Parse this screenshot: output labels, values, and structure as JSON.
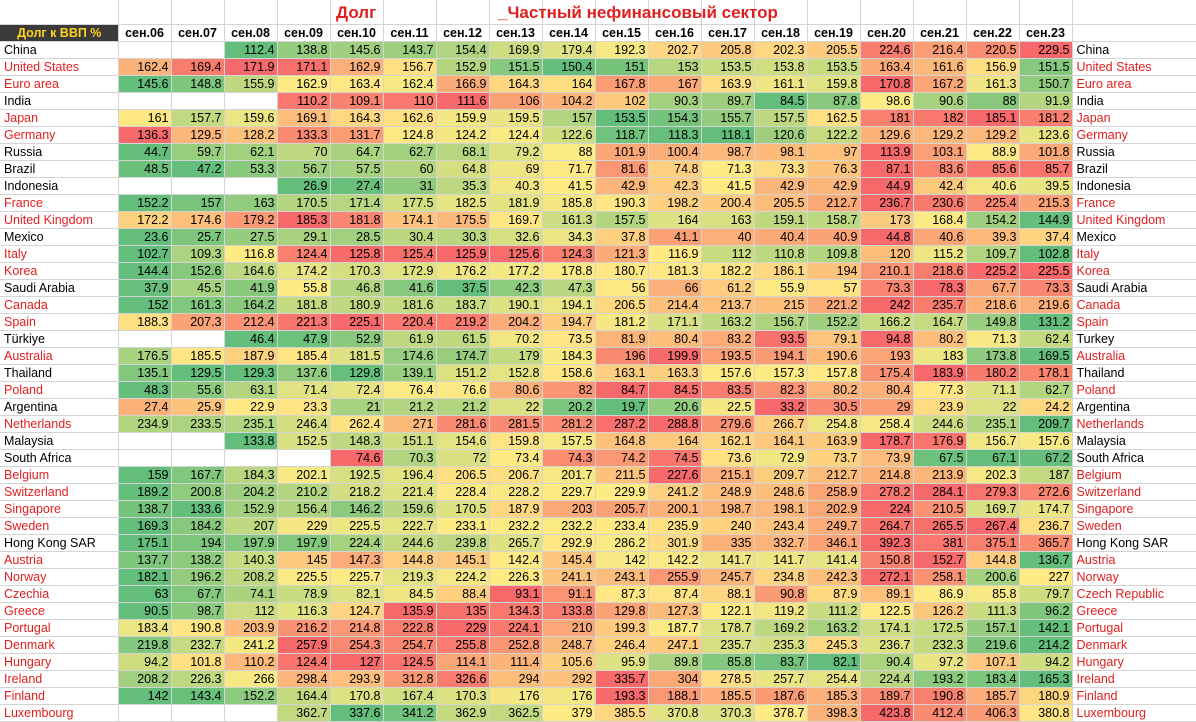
{
  "title_left": "Долг",
  "title_right": "_Частный нефинансовый сектор",
  "corner_label": "Долг к ВВП %",
  "columns": [
    "сен.06",
    "сен.07",
    "сен.08",
    "сен.09",
    "сен.10",
    "сен.11",
    "сен.12",
    "сен.13",
    "сен.14",
    "сен.15",
    "сен.16",
    "сен.17",
    "сен.18",
    "сен.19",
    "сен.20",
    "сен.21",
    "сен.22",
    "сен.23"
  ],
  "rows": [
    {
      "name": "China",
      "right_name": "China",
      "red": false,
      "values": [
        null,
        null,
        112.4,
        138.8,
        145.6,
        143.7,
        154.4,
        169.9,
        179.4,
        192.3,
        202.7,
        205.8,
        202.3,
        205.5,
        224.6,
        216.4,
        220.5,
        229.5
      ]
    },
    {
      "name": "United States",
      "right_name": "United States",
      "red": true,
      "values": [
        162.4,
        169.4,
        171.9,
        171.1,
        162.9,
        156.7,
        152.9,
        151.5,
        150.4,
        151,
        153,
        153.5,
        153.8,
        153.5,
        163.4,
        161.6,
        156.9,
        151.5
      ]
    },
    {
      "name": "Euro area",
      "right_name": "Euro area",
      "red": true,
      "values": [
        145.6,
        148.8,
        155.9,
        162.9,
        163.4,
        162.4,
        166.9,
        164.3,
        164,
        167.8,
        167,
        163.9,
        161.1,
        159.8,
        170.8,
        167.2,
        161.3,
        150.7
      ]
    },
    {
      "name": "India",
      "right_name": "India",
      "red": false,
      "values": [
        null,
        null,
        null,
        110.2,
        109.1,
        110,
        111.6,
        106,
        104.2,
        102,
        90.3,
        89.7,
        84.5,
        87.8,
        98.6,
        90.6,
        88,
        91.9
      ]
    },
    {
      "name": "Japan",
      "right_name": "Japan",
      "red": true,
      "values": [
        161,
        157.7,
        159.6,
        169.1,
        164.3,
        162.6,
        159.9,
        159.5,
        157,
        153.5,
        154.3,
        155.7,
        157.5,
        162.5,
        181,
        182,
        185.1,
        181.2
      ]
    },
    {
      "name": "Germany",
      "right_name": "Germany",
      "red": true,
      "values": [
        136.3,
        129.5,
        128.2,
        133.3,
        131.7,
        124.8,
        124.2,
        124.4,
        122.6,
        118.7,
        118.3,
        118.1,
        120.6,
        122.2,
        129.6,
        129.2,
        129.2,
        123.6
      ]
    },
    {
      "name": "Russia",
      "right_name": "Russia",
      "red": false,
      "values": [
        44.7,
        59.7,
        62.1,
        70,
        64.7,
        62.7,
        68.1,
        79.2,
        88,
        101.9,
        100.4,
        98.7,
        98.1,
        97,
        113.9,
        103.1,
        88.9,
        101.8
      ]
    },
    {
      "name": "Brazil",
      "right_name": "Brazil",
      "red": false,
      "values": [
        48.5,
        47.2,
        53.3,
        56.7,
        57.5,
        60,
        64.8,
        69,
        71.7,
        81.6,
        74.8,
        71.3,
        73.3,
        76.3,
        87.1,
        83.6,
        85.6,
        85.7
      ]
    },
    {
      "name": "Indonesia",
      "right_name": "Indonesia",
      "red": false,
      "values": [
        null,
        null,
        null,
        26.9,
        27.4,
        31,
        35.3,
        40.3,
        41.5,
        42.9,
        42.3,
        41.5,
        42.9,
        42.9,
        44.9,
        42.4,
        40.6,
        39.5
      ]
    },
    {
      "name": "France",
      "right_name": "France",
      "red": true,
      "values": [
        152.2,
        157,
        163,
        170.5,
        171.4,
        177.5,
        182.5,
        181.9,
        185.8,
        190.3,
        198.2,
        200.4,
        205.5,
        212.7,
        236.7,
        230.6,
        225.4,
        215.3
      ]
    },
    {
      "name": "United Kingdom",
      "right_name": "United Kingdom",
      "red": true,
      "values": [
        172.2,
        174.6,
        179.2,
        185.3,
        181.8,
        174.1,
        175.5,
        169.7,
        161.3,
        157.5,
        164,
        163,
        159.1,
        158.7,
        173,
        168.4,
        154.2,
        144.9
      ]
    },
    {
      "name": "Mexico",
      "right_name": "Mexico",
      "red": false,
      "values": [
        23.6,
        25.7,
        27.5,
        29.1,
        28.5,
        30.4,
        30.3,
        32.6,
        34.3,
        37.8,
        41.1,
        40,
        40.4,
        40.9,
        44.8,
        40.6,
        39.3,
        37.4
      ]
    },
    {
      "name": "Italy",
      "right_name": "Italy",
      "red": true,
      "values": [
        102.7,
        109.3,
        116.8,
        124.4,
        125.8,
        125.4,
        125.9,
        125.6,
        124.3,
        121.3,
        116.9,
        112,
        110.8,
        109.8,
        120,
        115.2,
        109.7,
        102.8
      ]
    },
    {
      "name": "Korea",
      "right_name": "Korea",
      "red": true,
      "values": [
        144.4,
        152.6,
        164.6,
        174.2,
        170.3,
        172.9,
        176.2,
        177.2,
        178.8,
        180.7,
        181.3,
        182.2,
        186.1,
        194,
        210.1,
        218.6,
        225.2,
        225.5
      ]
    },
    {
      "name": "Saudi Arabia",
      "right_name": "Saudi Arabia",
      "red": false,
      "values": [
        37.9,
        45.5,
        41.9,
        55.8,
        46.8,
        41.6,
        37.5,
        42.3,
        47.3,
        56,
        66,
        61.2,
        55.9,
        57,
        73.3,
        78.3,
        67.7,
        73.3
      ]
    },
    {
      "name": "Canada",
      "right_name": "Canada",
      "red": true,
      "values": [
        152,
        161.3,
        164.2,
        181.8,
        180.9,
        181.6,
        183.7,
        190.1,
        194.1,
        206.5,
        214.4,
        213.7,
        215,
        221.2,
        242,
        235.7,
        218.6,
        219.6
      ]
    },
    {
      "name": "Spain",
      "right_name": "Spain",
      "red": true,
      "values": [
        188.3,
        207.3,
        212.4,
        221.3,
        225.1,
        220.4,
        219.2,
        204.2,
        194.7,
        181.2,
        171.1,
        163.2,
        156.7,
        152.2,
        166.2,
        164.7,
        149.8,
        131.2
      ]
    },
    {
      "name": "Türkiye",
      "right_name": "Turkey",
      "red": false,
      "values": [
        null,
        null,
        46.4,
        47.9,
        52.9,
        61.9,
        61.5,
        70.2,
        73.5,
        81.9,
        80.4,
        83.2,
        93.5,
        79.1,
        94.8,
        80.2,
        71.3,
        62.4
      ]
    },
    {
      "name": "Australia",
      "right_name": "Australia",
      "red": true,
      "values": [
        176.5,
        185.5,
        187.9,
        185.4,
        181.5,
        174.6,
        174.7,
        179,
        184.3,
        196,
        199.9,
        193.5,
        194.1,
        190.6,
        193,
        183,
        173.8,
        169.5
      ]
    },
    {
      "name": "Thailand",
      "right_name": "Thailand",
      "red": false,
      "values": [
        135.1,
        129.5,
        129.3,
        137.6,
        129.8,
        139.1,
        151.2,
        152.8,
        158.6,
        163.1,
        163.3,
        157.6,
        157.3,
        157.8,
        175.4,
        183.9,
        180.2,
        178.1
      ]
    },
    {
      "name": "Poland",
      "right_name": "Poland",
      "red": true,
      "values": [
        48.3,
        55.6,
        63.1,
        71.4,
        72.4,
        76.4,
        76.6,
        80.6,
        82,
        84.7,
        84.5,
        83.5,
        82.3,
        80.2,
        80.4,
        77.3,
        71.1,
        62.7
      ]
    },
    {
      "name": "Argentina",
      "right_name": "Argentina",
      "red": false,
      "values": [
        27.4,
        25.9,
        22.9,
        23.3,
        21,
        21.2,
        21.2,
        22,
        20.2,
        19.7,
        20.6,
        22.5,
        33.2,
        30.5,
        29,
        23.9,
        22,
        24.2
      ]
    },
    {
      "name": "Netherlands",
      "right_name": "Netherlands",
      "red": true,
      "values": [
        234.9,
        233.5,
        235.1,
        246.4,
        262.4,
        271,
        281.6,
        281.5,
        281.2,
        287.2,
        288.8,
        279.6,
        266.7,
        254.8,
        258.4,
        244.6,
        235.1,
        209.7
      ]
    },
    {
      "name": "Malaysia",
      "right_name": "Malaysia",
      "red": false,
      "values": [
        null,
        null,
        133.8,
        152.5,
        148.3,
        151.1,
        154.6,
        159.8,
        157.5,
        164.8,
        164,
        162.1,
        164.1,
        163.9,
        178.7,
        176.9,
        156.7,
        157.6
      ]
    },
    {
      "name": "South Africa",
      "right_name": "South Africa",
      "red": false,
      "values": [
        null,
        null,
        null,
        null,
        74.6,
        70.3,
        72,
        73.4,
        74.3,
        74.2,
        74.5,
        73.6,
        72.9,
        73.7,
        73.9,
        67.5,
        67.1,
        67.2
      ]
    },
    {
      "name": "Belgium",
      "right_name": "Belgium",
      "red": true,
      "values": [
        159,
        167.7,
        184.3,
        202.1,
        192.5,
        196.4,
        206.5,
        206.7,
        201.7,
        211.5,
        227.6,
        215.1,
        209.7,
        212.7,
        214.8,
        213.9,
        202.3,
        187
      ]
    },
    {
      "name": "Switzerland",
      "right_name": "Switzerland",
      "red": true,
      "values": [
        189.2,
        200.8,
        204.2,
        210.2,
        218.2,
        221.4,
        228.4,
        228.2,
        229.7,
        229.9,
        241.2,
        248.9,
        248.6,
        258.9,
        278.2,
        284.1,
        279.3,
        272.6
      ]
    },
    {
      "name": "Singapore",
      "right_name": "Singapore",
      "red": true,
      "values": [
        138.7,
        133.6,
        152.9,
        156.4,
        146.2,
        159.6,
        170.5,
        187.9,
        203,
        205.7,
        200.1,
        198.7,
        198.1,
        202.9,
        224,
        210.5,
        169.7,
        174.7
      ]
    },
    {
      "name": "Sweden",
      "right_name": "Sweden",
      "red": true,
      "values": [
        169.3,
        184.2,
        207,
        229,
        225.5,
        222.7,
        233.1,
        232.2,
        232.2,
        233.4,
        235.9,
        240,
        243.4,
        249.7,
        264.7,
        265.5,
        267.4,
        236.7
      ]
    },
    {
      "name": "Hong Kong SAR",
      "right_name": "Hong Kong SAR",
      "red": false,
      "values": [
        175.1,
        194,
        197.9,
        197.9,
        224.4,
        244.6,
        239.8,
        265.7,
        292.9,
        286.2,
        301.9,
        335,
        332.7,
        346.1,
        392.3,
        381,
        375.1,
        365.7
      ]
    },
    {
      "name": "Austria",
      "right_name": "Austria",
      "red": true,
      "values": [
        137.7,
        138.2,
        140.3,
        145,
        147.3,
        144.8,
        145.1,
        142.4,
        145.4,
        142,
        142.2,
        141.7,
        141.7,
        141.4,
        150.8,
        152.7,
        144.8,
        136.7
      ]
    },
    {
      "name": "Norway",
      "right_name": "Norway",
      "red": true,
      "values": [
        182.1,
        196.2,
        208.2,
        225.5,
        225.7,
        219.3,
        224.2,
        226.3,
        241.1,
        243.1,
        255.9,
        245.7,
        234.8,
        242.3,
        272.1,
        258.1,
        200.6,
        227
      ]
    },
    {
      "name": "Czechia",
      "right_name": "Czech Republic",
      "red": true,
      "values": [
        63,
        67.7,
        74.1,
        78.9,
        82.1,
        84.5,
        88.4,
        93.1,
        91.1,
        87.3,
        87.4,
        88.1,
        90.8,
        87.9,
        89.1,
        86.9,
        85.8,
        79.7
      ]
    },
    {
      "name": "Greece",
      "right_name": "Greece",
      "red": true,
      "values": [
        90.5,
        98.7,
        112,
        116.3,
        124.7,
        135.9,
        135,
        134.3,
        133.8,
        129.8,
        127.3,
        122.1,
        119.2,
        111.2,
        122.5,
        126.2,
        111.3,
        96.2
      ]
    },
    {
      "name": "Portugal",
      "right_name": "Portugal",
      "red": true,
      "values": [
        183.4,
        190.8,
        203.9,
        216.2,
        214.8,
        222.8,
        229,
        224.1,
        210,
        199.3,
        187.7,
        178.7,
        169.2,
        163.2,
        174.1,
        172.5,
        157.1,
        142.1
      ]
    },
    {
      "name": "Denmark",
      "right_name": "Denmark",
      "red": true,
      "values": [
        219.8,
        232.7,
        241.2,
        257.9,
        254.3,
        254.7,
        255.8,
        252.8,
        248.7,
        246.4,
        247.1,
        235.7,
        235.3,
        245.3,
        236.7,
        232.3,
        219.6,
        214.2
      ]
    },
    {
      "name": "Hungary",
      "right_name": "Hungary",
      "red": true,
      "values": [
        94.2,
        101.8,
        110.2,
        124.4,
        127,
        124.5,
        114.1,
        111.4,
        105.6,
        95.9,
        89.8,
        85.8,
        83.7,
        82.1,
        90.4,
        97.2,
        107.1,
        94.2
      ]
    },
    {
      "name": "Ireland",
      "right_name": "Ireland",
      "red": true,
      "values": [
        208.2,
        226.3,
        266,
        298.4,
        293.9,
        312.8,
        326.6,
        294,
        292,
        335.7,
        304,
        278.5,
        257.7,
        254.4,
        224.4,
        193.2,
        183.4,
        165.3
      ]
    },
    {
      "name": "Finland",
      "right_name": "Finland",
      "red": true,
      "values": [
        142,
        143.4,
        152.2,
        164.4,
        170.8,
        167.4,
        170.3,
        176,
        176,
        193.3,
        188.1,
        185.5,
        187.6,
        185.3,
        189.7,
        190.8,
        185.7,
        180.9
      ]
    },
    {
      "name": "Luxembourg",
      "right_name": "Luxembourg",
      "red": true,
      "values": [
        null,
        null,
        null,
        362.7,
        337.6,
        341.2,
        362.9,
        362.5,
        379,
        385.5,
        370.8,
        370.3,
        378.7,
        398.3,
        423.8,
        412.4,
        406.3,
        380.8
      ]
    }
  ],
  "colors": {
    "red": "#f8696b",
    "yellow": "#ffeb84",
    "green": "#63be7b",
    "label_red": "#e02020"
  }
}
